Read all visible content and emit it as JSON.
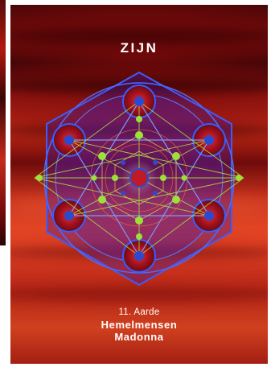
{
  "card": {
    "title": "ZIJN",
    "number_label": "11. Aarde",
    "name_line1": "Hemelmensen",
    "name_line2": "Madonna"
  },
  "colors": {
    "background_red": "#c8321c",
    "dark_red": "#3a0507",
    "mandala_blue": "#2a4bd0",
    "mandala_green": "#9ee03a",
    "mandala_orb": "#c01a26",
    "text": "#ffffff"
  },
  "icons": {
    "center_figure": "sacred-geometry-mandala-icon"
  }
}
